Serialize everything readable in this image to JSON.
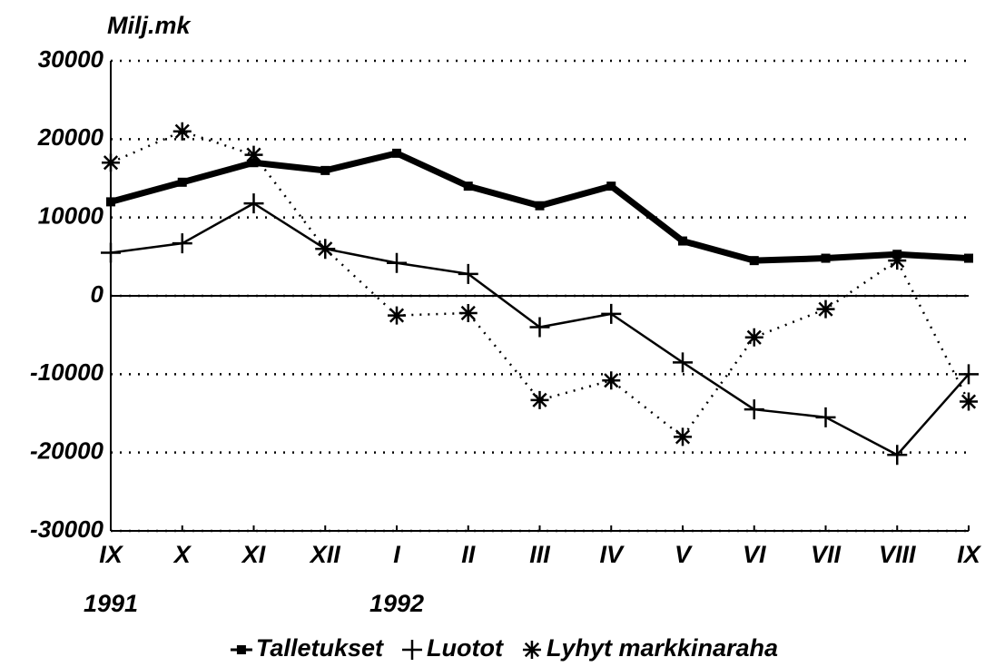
{
  "chart_data": {
    "type": "line",
    "ylabel": "Milj.mk",
    "categories": [
      "IX",
      "X",
      "XI",
      "XII",
      "I",
      "II",
      "III",
      "IV",
      "V",
      "VI",
      "VII",
      "VIII",
      "IX"
    ],
    "years": [
      "1991",
      null,
      null,
      null,
      "1992",
      null,
      null,
      null,
      null,
      null,
      null,
      null,
      null
    ],
    "series": [
      {
        "name": "Talletukset",
        "color": "#000000",
        "marker": "square",
        "style": "thick",
        "values": [
          12000,
          14500,
          17000,
          16000,
          18200,
          14000,
          11500,
          14000,
          7000,
          4500,
          4800,
          5300,
          4800
        ]
      },
      {
        "name": "Luotot",
        "color": "#000000",
        "marker": "plus",
        "style": "solid",
        "values": [
          5500,
          6700,
          11800,
          6000,
          4200,
          2800,
          -4000,
          -2300,
          -8500,
          -14500,
          -15500,
          -20300,
          -10000
        ]
      },
      {
        "name": "Lyhyt markkinaraha",
        "color": "#000000",
        "marker": "asterisk",
        "style": "dotted",
        "values": [
          17000,
          21000,
          18000,
          6000,
          -2500,
          -2200,
          -13300,
          -10800,
          -18000,
          -5300,
          -1700,
          4500,
          -13500
        ]
      }
    ],
    "ylim": [
      -30000,
      30000
    ],
    "yticks": [
      -30000,
      -20000,
      -10000,
      0,
      10000,
      20000,
      30000
    ],
    "grid": true,
    "legend": "bottom"
  }
}
